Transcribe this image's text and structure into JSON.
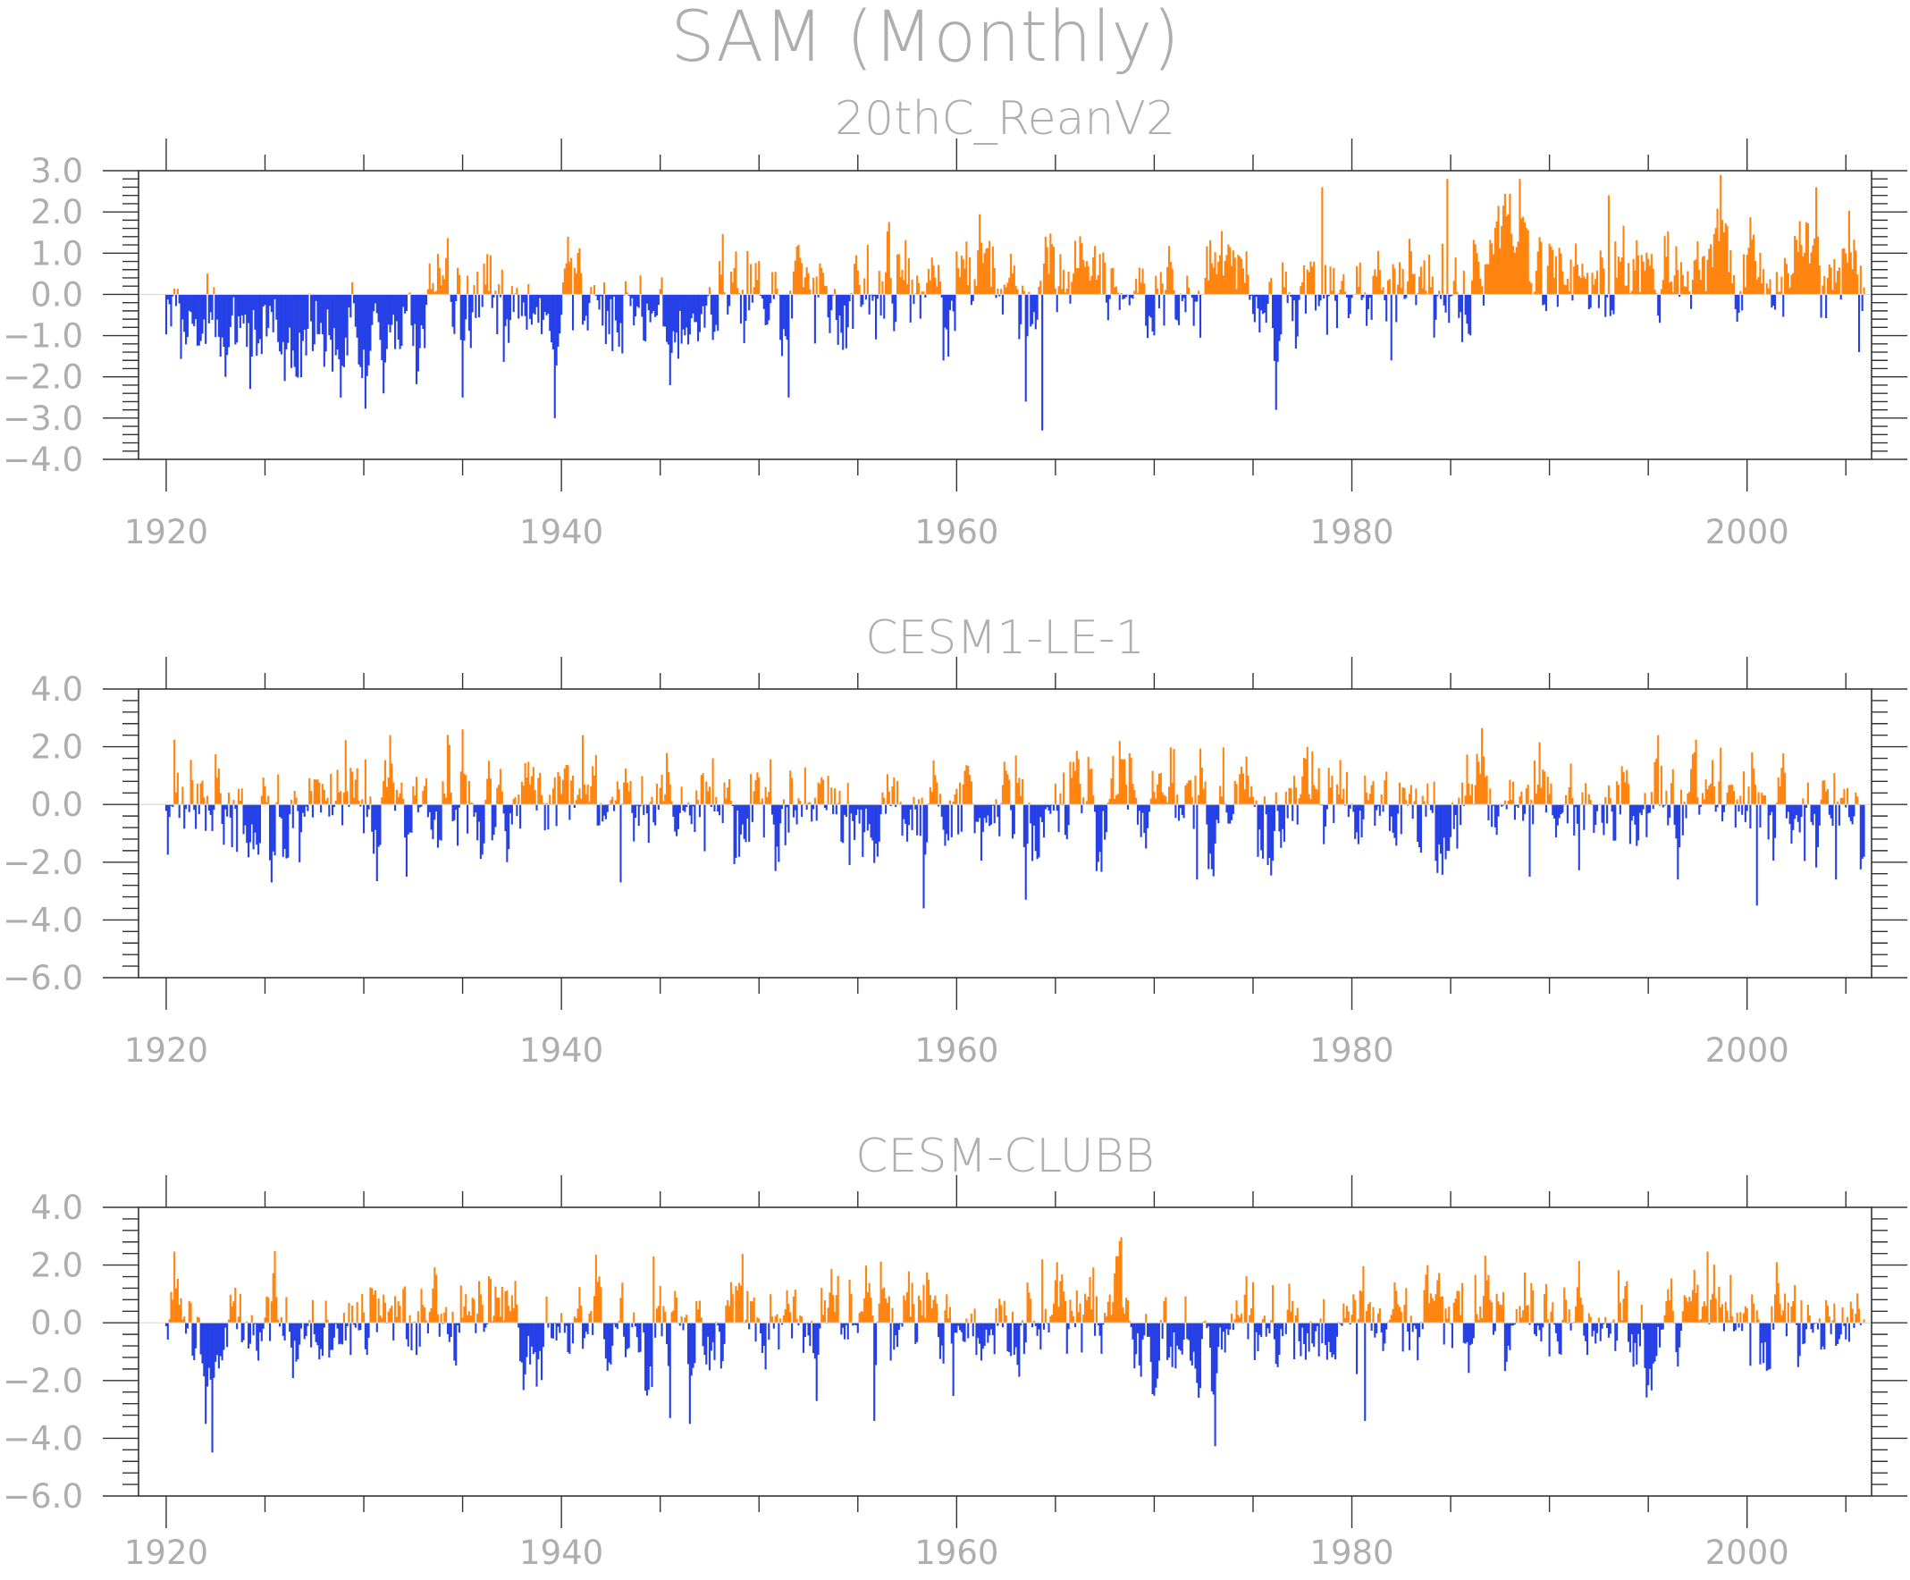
{
  "title": "SAM (Monthly)",
  "colors": {
    "positive": "#ff8410",
    "negative": "#2540e6",
    "text": "#aeaeae",
    "frame": "#333333"
  },
  "x_axis": {
    "range": [
      1918.6,
      2006.3
    ],
    "major_ticks": [
      1920,
      1940,
      1960,
      1980,
      2000
    ],
    "minor_step": 5,
    "tick_labels": [
      "1920",
      "1940",
      "1960",
      "1980",
      "2000"
    ]
  },
  "chart_data": [
    {
      "type": "bar",
      "panel_title": "20thC_ReanV2",
      "x_start": 1920.0,
      "x_end": 2005.917,
      "ylim": [
        -4.0,
        3.0
      ],
      "y_ticks": [
        3.0,
        2.0,
        1.0,
        0.0,
        -1.0,
        -2.0,
        -3.0,
        -4.0
      ],
      "y_tick_labels": [
        "3.0",
        "2.0",
        "1.0",
        "0.0",
        "−1.0",
        "−2.0",
        "−3.0",
        "−4.0"
      ],
      "y_minor_step": 0.2,
      "features": [
        {
          "year": 1922.0,
          "value": -1.2
        },
        {
          "year": 1923.0,
          "value": -2.0
        },
        {
          "year": 1926.0,
          "value": -2.1
        },
        {
          "year": 1931.0,
          "value": -2.4
        },
        {
          "year": 1935.0,
          "value": -2.5
        },
        {
          "year": 1937.0,
          "value": 0.6
        },
        {
          "year": 1939.7,
          "value": -3.0
        },
        {
          "year": 1940.3,
          "value": 1.4
        },
        {
          "year": 1945.5,
          "value": -2.2
        },
        {
          "year": 1951.5,
          "value": -2.5
        },
        {
          "year": 1952.0,
          "value": 1.2
        },
        {
          "year": 1955.5,
          "value": 1.2
        },
        {
          "year": 1964.3,
          "value": -3.3
        },
        {
          "year": 1963.5,
          "value": -2.6
        },
        {
          "year": 1966.0,
          "value": 1.3
        },
        {
          "year": 1976.2,
          "value": -2.8
        },
        {
          "year": 1978.5,
          "value": 2.6
        },
        {
          "year": 1982.0,
          "value": -1.6
        },
        {
          "year": 1984.8,
          "value": 2.8
        },
        {
          "year": 1988.5,
          "value": 2.8
        },
        {
          "year": 1993.0,
          "value": 2.4
        },
        {
          "year": 1998.7,
          "value": 2.9
        },
        {
          "year": 2003.5,
          "value": 2.6
        },
        {
          "year": 2005.7,
          "value": -1.4
        }
      ]
    },
    {
      "type": "bar",
      "panel_title": "CESM1-LE-1",
      "x_start": 1920.0,
      "x_end": 2005.917,
      "ylim": [
        -6.0,
        4.0
      ],
      "y_ticks": [
        4.0,
        2.0,
        0.0,
        -2.0,
        -4.0,
        -6.0
      ],
      "y_tick_labels": [
        "4.0",
        "2.0",
        "0.0",
        "−2.0",
        "−4.0",
        "−6.0"
      ],
      "y_minor_step": 0.4,
      "features": [
        {
          "year": 1925.3,
          "value": -2.7
        },
        {
          "year": 1931.3,
          "value": 2.4
        },
        {
          "year": 1932.2,
          "value": -2.5
        },
        {
          "year": 1935.0,
          "value": 2.6
        },
        {
          "year": 1943.0,
          "value": -2.7
        },
        {
          "year": 1958.3,
          "value": -3.6
        },
        {
          "year": 1963.5,
          "value": -3.3
        },
        {
          "year": 1963.0,
          "value": 1.7
        },
        {
          "year": 1972.2,
          "value": -2.6
        },
        {
          "year": 1989.0,
          "value": -2.5
        },
        {
          "year": 1995.5,
          "value": 2.4
        },
        {
          "year": 1996.5,
          "value": -2.6
        },
        {
          "year": 2000.5,
          "value": -3.5
        },
        {
          "year": 2004.5,
          "value": -2.6
        }
      ]
    },
    {
      "type": "bar",
      "panel_title": "CESM-CLUBB",
      "x_start": 1920.0,
      "x_end": 2005.917,
      "ylim": [
        -6.0,
        4.0
      ],
      "y_ticks": [
        4.0,
        2.0,
        0.0,
        -2.0,
        -4.0,
        -6.0
      ],
      "y_tick_labels": [
        "4.0",
        "2.0",
        "0.0",
        "−2.0",
        "−4.0",
        "−6.0"
      ],
      "y_minor_step": 0.4,
      "features": [
        {
          "year": 1922.3,
          "value": -4.7
        },
        {
          "year": 1922.0,
          "value": -3.5
        },
        {
          "year": 1944.7,
          "value": 2.3
        },
        {
          "year": 1946.5,
          "value": -3.5
        },
        {
          "year": 1945.5,
          "value": -3.3
        },
        {
          "year": 1955.8,
          "value": -3.4
        },
        {
          "year": 1964.3,
          "value": 2.2
        },
        {
          "year": 1980.7,
          "value": -3.4
        },
        {
          "year": 2001.5,
          "value": 2.1
        }
      ]
    }
  ]
}
